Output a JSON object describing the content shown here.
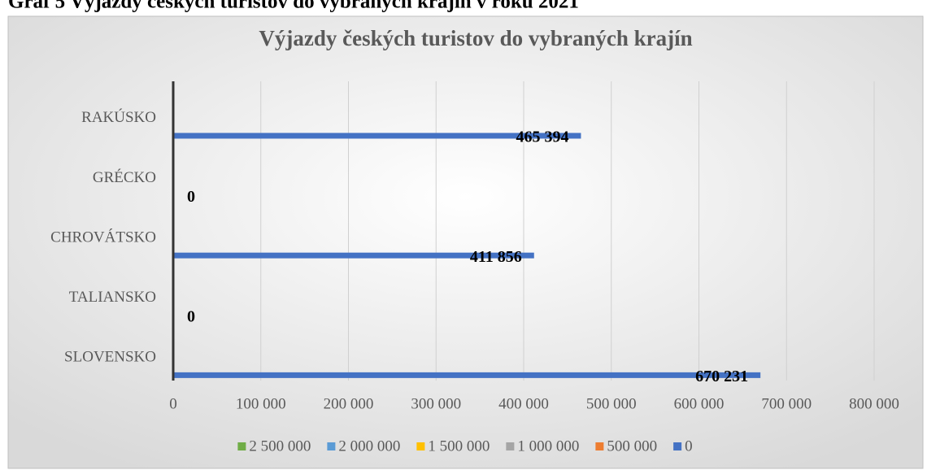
{
  "caption": "Graf 5 Výjazdy českých turistov do vybraných krajín v roku 2021",
  "chart_data": {
    "type": "bar",
    "orientation": "horizontal",
    "title": "Výjazdy českých turistov do vybraných krajín",
    "categories": [
      "SLOVENSKO",
      "TALIANSKO",
      "CHROVÁTSKO",
      "GRÉCKO",
      "RAKÚSKO"
    ],
    "series": [
      {
        "name": "2 500 000",
        "color": "#70ad47",
        "values": [
          null,
          null,
          null,
          null,
          null
        ]
      },
      {
        "name": "2 000 000",
        "color": "#5b9bd5",
        "values": [
          null,
          null,
          null,
          null,
          null
        ]
      },
      {
        "name": "1 500 000",
        "color": "#ffc000",
        "values": [
          null,
          null,
          null,
          null,
          null
        ]
      },
      {
        "name": "1 000 000",
        "color": "#a5a5a5",
        "values": [
          null,
          null,
          null,
          null,
          null
        ]
      },
      {
        "name": "500 000",
        "color": "#ed7d31",
        "values": [
          null,
          null,
          null,
          null,
          null
        ]
      },
      {
        "name": "0",
        "color": "#4472c4",
        "values": [
          670231,
          0,
          411856,
          0,
          465394
        ],
        "value_labels": [
          "670 231",
          "0",
          "411 856",
          "0",
          "465 394"
        ]
      }
    ],
    "xlim": [
      0,
      800000
    ],
    "xticks": [
      0,
      {
        "value": 100000,
        "label": "100 000"
      },
      {
        "value": 200000,
        "label": "200 000"
      },
      {
        "value": 300000,
        "label": "300 000"
      },
      {
        "value": 400000,
        "label": "400 000"
      },
      {
        "value": 500000,
        "label": "500 000"
      },
      {
        "value": 600000,
        "label": "600 000"
      },
      {
        "value": 700000,
        "label": "700 000"
      },
      {
        "value": 800000,
        "label": "800 000"
      }
    ],
    "grid": true,
    "legend": "bottom"
  }
}
